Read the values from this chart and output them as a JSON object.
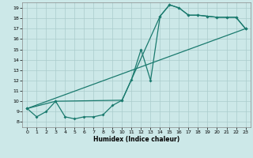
{
  "xlabel": "Humidex (Indice chaleur)",
  "xlim": [
    -0.5,
    23.5
  ],
  "ylim": [
    7.5,
    19.5
  ],
  "xticks": [
    0,
    1,
    2,
    3,
    4,
    5,
    6,
    7,
    8,
    9,
    10,
    11,
    12,
    13,
    14,
    15,
    16,
    17,
    18,
    19,
    20,
    21,
    22,
    23
  ],
  "yticks": [
    8,
    9,
    10,
    11,
    12,
    13,
    14,
    15,
    16,
    17,
    18,
    19
  ],
  "bg_color": "#cce8e8",
  "line_color": "#1a7a6e",
  "grid_color": "#aacccc",
  "line1_x": [
    0,
    1,
    2,
    3,
    4,
    5,
    6,
    7,
    8,
    9,
    10,
    11,
    12,
    13,
    14,
    15,
    16,
    17,
    18,
    19,
    20,
    21,
    22,
    23
  ],
  "line1_y": [
    9.3,
    8.5,
    9.0,
    10.0,
    8.5,
    8.3,
    8.5,
    8.5,
    8.7,
    9.6,
    10.1,
    12.1,
    15.0,
    12.0,
    18.2,
    19.3,
    19.0,
    18.3,
    18.3,
    18.2,
    18.1,
    18.1,
    18.1,
    17.0
  ],
  "line2_x": [
    0,
    3,
    10,
    14,
    15,
    16,
    17,
    18,
    19,
    20,
    21,
    22,
    23
  ],
  "line2_y": [
    9.3,
    10.0,
    10.1,
    18.2,
    19.3,
    19.0,
    18.3,
    18.3,
    18.2,
    18.1,
    18.1,
    18.1,
    17.0
  ],
  "line3_x": [
    0,
    23
  ],
  "line3_y": [
    9.3,
    17.0
  ]
}
